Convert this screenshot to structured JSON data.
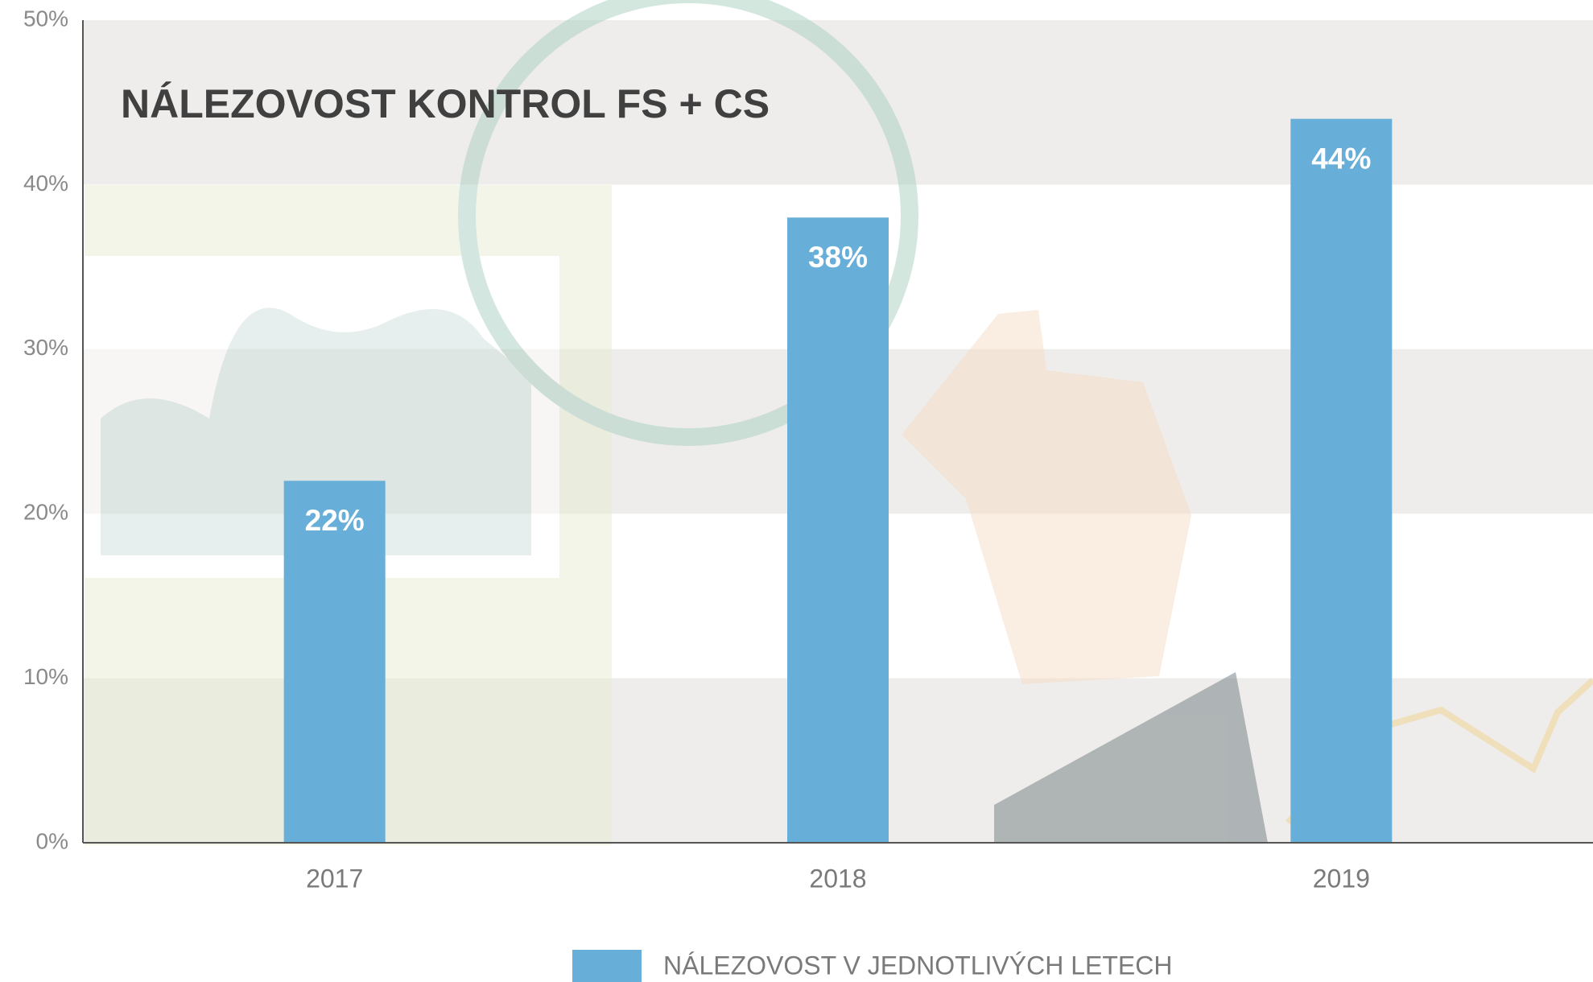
{
  "chart_data": {
    "type": "bar",
    "title": "NÁLEZOVOST KONTROL FS + CS",
    "categories": [
      "2017",
      "2018",
      "2019"
    ],
    "series": [
      {
        "name": "NÁLEZOVOST V JEDNOTLIVÝCH LETECH",
        "color": "#67aed8",
        "values": [
          22,
          38,
          44
        ],
        "value_labels": [
          "22%",
          "38%",
          "44%"
        ]
      }
    ],
    "ylim": [
      0,
      50
    ],
    "yticks": [
      {
        "value": 0,
        "label": "0%"
      },
      {
        "value": 10,
        "label": "10%"
      },
      {
        "value": 20,
        "label": "20%"
      },
      {
        "value": 30,
        "label": "30%"
      },
      {
        "value": 40,
        "label": "40%"
      },
      {
        "value": 50,
        "label": "50%"
      }
    ],
    "legend": "bottom"
  }
}
